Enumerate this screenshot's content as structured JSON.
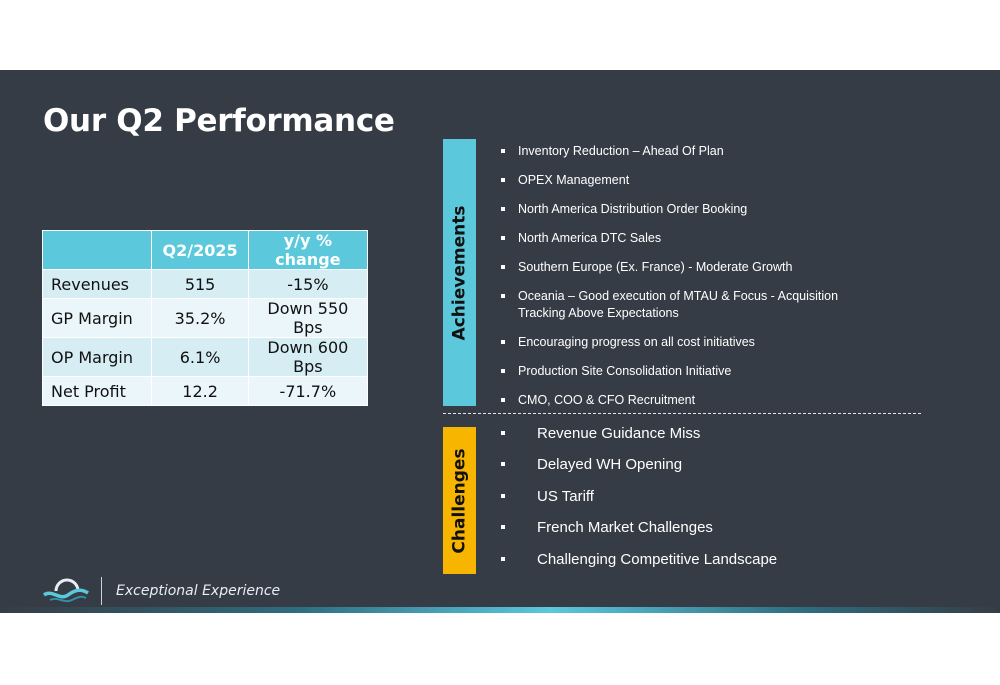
{
  "slide": {
    "title": "Our Q2 Performance",
    "tagline": "Exceptional Experience"
  },
  "table": {
    "headers": [
      "",
      "Q2/2025",
      "y/y % change"
    ],
    "rows": [
      [
        "Revenues",
        "515",
        "-15%"
      ],
      [
        "GP Margin",
        "35.2%",
        "Down 550 Bps"
      ],
      [
        "OP Margin",
        "6.1%",
        "Down 600 Bps"
      ],
      [
        "Net Profit",
        "12.2",
        "-71.7%"
      ]
    ]
  },
  "achievements": {
    "label": "Achievements",
    "items": [
      "Inventory Reduction – Ahead Of Plan",
      "OPEX Management",
      "North America Distribution Order Booking",
      "North America DTC Sales",
      "Southern Europe (Ex. France) - Moderate Growth",
      "Oceania  – Good execution of MTAU & Focus - Acquisition Tracking Above Expectations",
      "Encouraging progress on all cost initiatives",
      "Production Site Consolidation Initiative",
      "CMO, COO & CFO Recruitment"
    ]
  },
  "challenges": {
    "label": "Challenges",
    "items": [
      "Revenue Guidance Miss",
      "Delayed WH Opening",
      "US Tariff",
      "French Market Challenges",
      "Challenging Competitive Landscape"
    ]
  },
  "colors": {
    "background": "#363c45",
    "accent_teal": "#5bc8dc",
    "accent_yellow": "#f7b500"
  },
  "icons": [
    "wave-logo-icon"
  ]
}
